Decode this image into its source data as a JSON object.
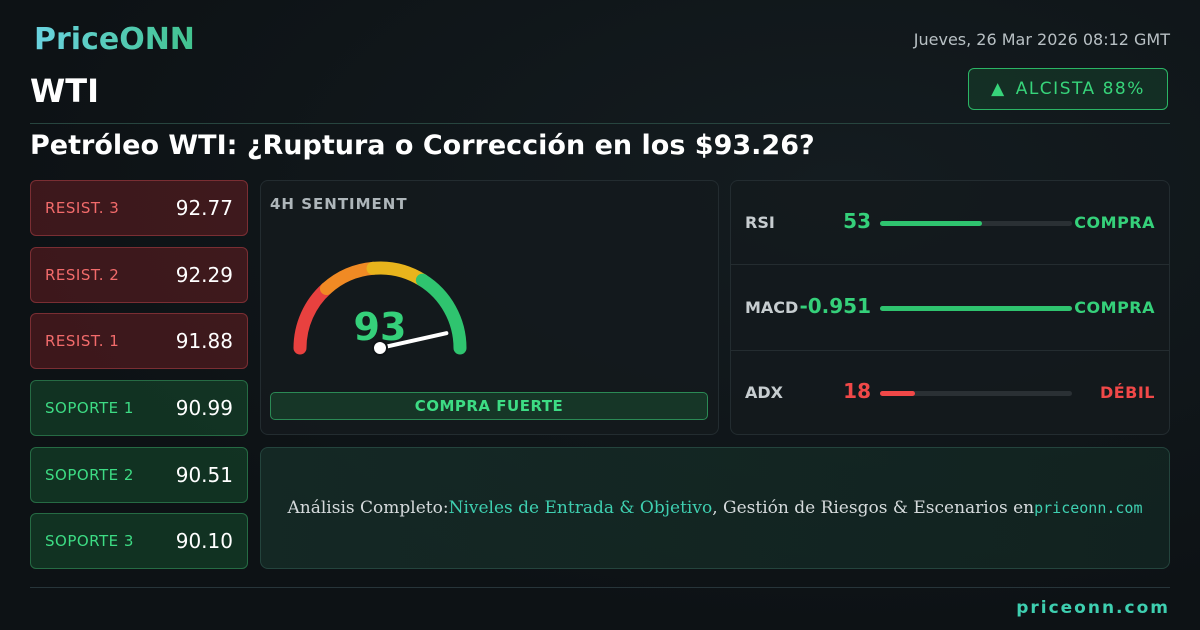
{
  "brand": "PriceONN",
  "symbol": "WTI",
  "date": "Jueves, 26 Mar 2026 08:12 GMT",
  "badge": {
    "icon": "▲",
    "label": "ALCISTA 88%"
  },
  "headline": "Petróleo WTI: ¿Ruptura o Corrección en los $93.26?",
  "levels": [
    {
      "label": "RESIST. 3",
      "value": "92.77"
    },
    {
      "label": "RESIST. 2",
      "value": "92.29"
    },
    {
      "label": "RESIST. 1",
      "value": "91.88"
    },
    {
      "label": "SOPORTE 1",
      "value": "90.99"
    },
    {
      "label": "SOPORTE 2",
      "value": "90.51"
    },
    {
      "label": "SOPORTE 3",
      "value": "90.10"
    }
  ],
  "sentiment": {
    "title": "4H SENTIMENT",
    "value": 93,
    "signal": "COMPRA FUERTE"
  },
  "indicators": [
    {
      "name": "RSI",
      "value": 53,
      "signal": "COMPRA"
    },
    {
      "name": "MACD",
      "value": -0.951,
      "signal": "COMPRA"
    },
    {
      "name": "ADX",
      "value": 18,
      "signal": "DÉBIL"
    }
  ],
  "cta": {
    "lead": "Análisis Completo:",
    "link": "Niveles de Entrada & Objetivo",
    "middle": ", Gestión de Riesgos & Escenarios en",
    "site": "priceonn.com"
  },
  "footer": "priceonn.com"
}
